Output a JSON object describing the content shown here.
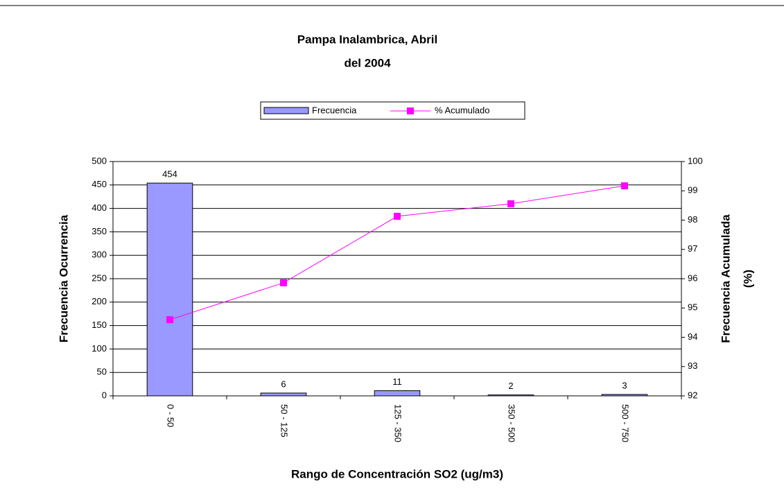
{
  "chart_data": {
    "type": "bar_line",
    "title": [
      "Pampa Inalambrica, Abril",
      "del 2004"
    ],
    "xlabel": "Rango de Concentración SO2 (ug/m3)",
    "ylabel": "Frecuencia Ocurrencia",
    "y2label": [
      "Frecuencia Acumulada",
      "(%)"
    ],
    "categories": [
      "0 - 50",
      "50 - 125",
      "125 - 350",
      "350 - 500",
      "500 - 750"
    ],
    "series": [
      {
        "name": "Frecuencia",
        "color": "#9999ff",
        "type": "bar",
        "values": [
          454,
          6,
          11,
          2,
          3
        ]
      },
      {
        "name": "% Acumulado",
        "color": "#ff00ff",
        "type": "line",
        "axis": "y2",
        "values": [
          94.6,
          95.86,
          98.13,
          98.56,
          99.17
        ]
      }
    ],
    "ylim": [
      0,
      500
    ],
    "yticks": [
      0,
      50,
      100,
      150,
      200,
      250,
      300,
      350,
      400,
      450,
      500
    ],
    "y2lim": [
      92,
      100
    ],
    "y2ticks": [
      92,
      93,
      94,
      95,
      96,
      97,
      98,
      99,
      100
    ],
    "grid": true,
    "legend": "top"
  }
}
